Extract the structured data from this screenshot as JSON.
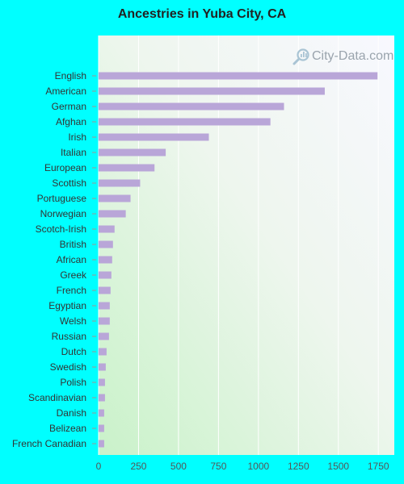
{
  "chart_data": {
    "type": "bar",
    "orientation": "horizontal",
    "title": "Ancestries in Yuba City, CA",
    "xlabel": "",
    "ylabel": "",
    "categories": [
      "English",
      "American",
      "German",
      "Afghan",
      "Irish",
      "Italian",
      "European",
      "Scottish",
      "Portuguese",
      "Norwegian",
      "Scotch-Irish",
      "British",
      "African",
      "Greek",
      "French",
      "Egyptian",
      "Welsh",
      "Russian",
      "Dutch",
      "Swedish",
      "Polish",
      "Scandinavian",
      "Danish",
      "Belizean",
      "French Canadian"
    ],
    "values": [
      1745,
      1415,
      1160,
      1075,
      690,
      420,
      350,
      260,
      200,
      170,
      100,
      90,
      85,
      80,
      75,
      70,
      70,
      65,
      50,
      45,
      40,
      40,
      35,
      35,
      35
    ],
    "xlim": [
      0,
      1850
    ],
    "xticks": [
      "0",
      "250",
      "500",
      "750",
      "1000",
      "1250",
      "1500",
      "1750"
    ],
    "grid": true,
    "bar_color": "#b9a6d8"
  },
  "watermark": {
    "text": "City-Data.com",
    "icon": "search-magnifier-icon"
  }
}
